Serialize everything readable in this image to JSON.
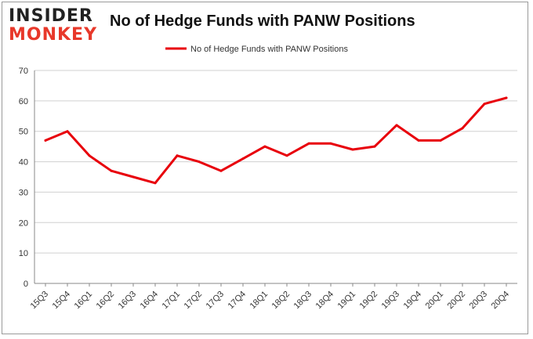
{
  "logo": {
    "line1": "INSIDER",
    "line2": "MONKEY"
  },
  "chart_data": {
    "type": "line",
    "title": "No of Hedge Funds with PANW Positions",
    "xlabel": "",
    "ylabel": "",
    "categories": [
      "15Q3",
      "15Q4",
      "16Q1",
      "16Q2",
      "16Q3",
      "16Q4",
      "17Q1",
      "17Q2",
      "17Q3",
      "17Q4",
      "18Q1",
      "18Q2",
      "18Q3",
      "18Q4",
      "19Q1",
      "19Q2",
      "19Q3",
      "19Q4",
      "20Q1",
      "20Q2",
      "20Q3",
      "20Q4"
    ],
    "series": [
      {
        "name": "No of Hedge Funds with PANW Positions",
        "values": [
          47,
          50,
          42,
          37,
          35,
          33,
          42,
          40,
          37,
          41,
          45,
          42,
          46,
          46,
          44,
          45,
          52,
          47,
          47,
          51,
          59,
          61
        ],
        "color": "#e8000b"
      }
    ],
    "yticks": [
      0,
      10,
      20,
      30,
      40,
      50,
      60,
      70
    ],
    "ylim": [
      0,
      70
    ],
    "grid": true,
    "legend_position": "top-center"
  }
}
